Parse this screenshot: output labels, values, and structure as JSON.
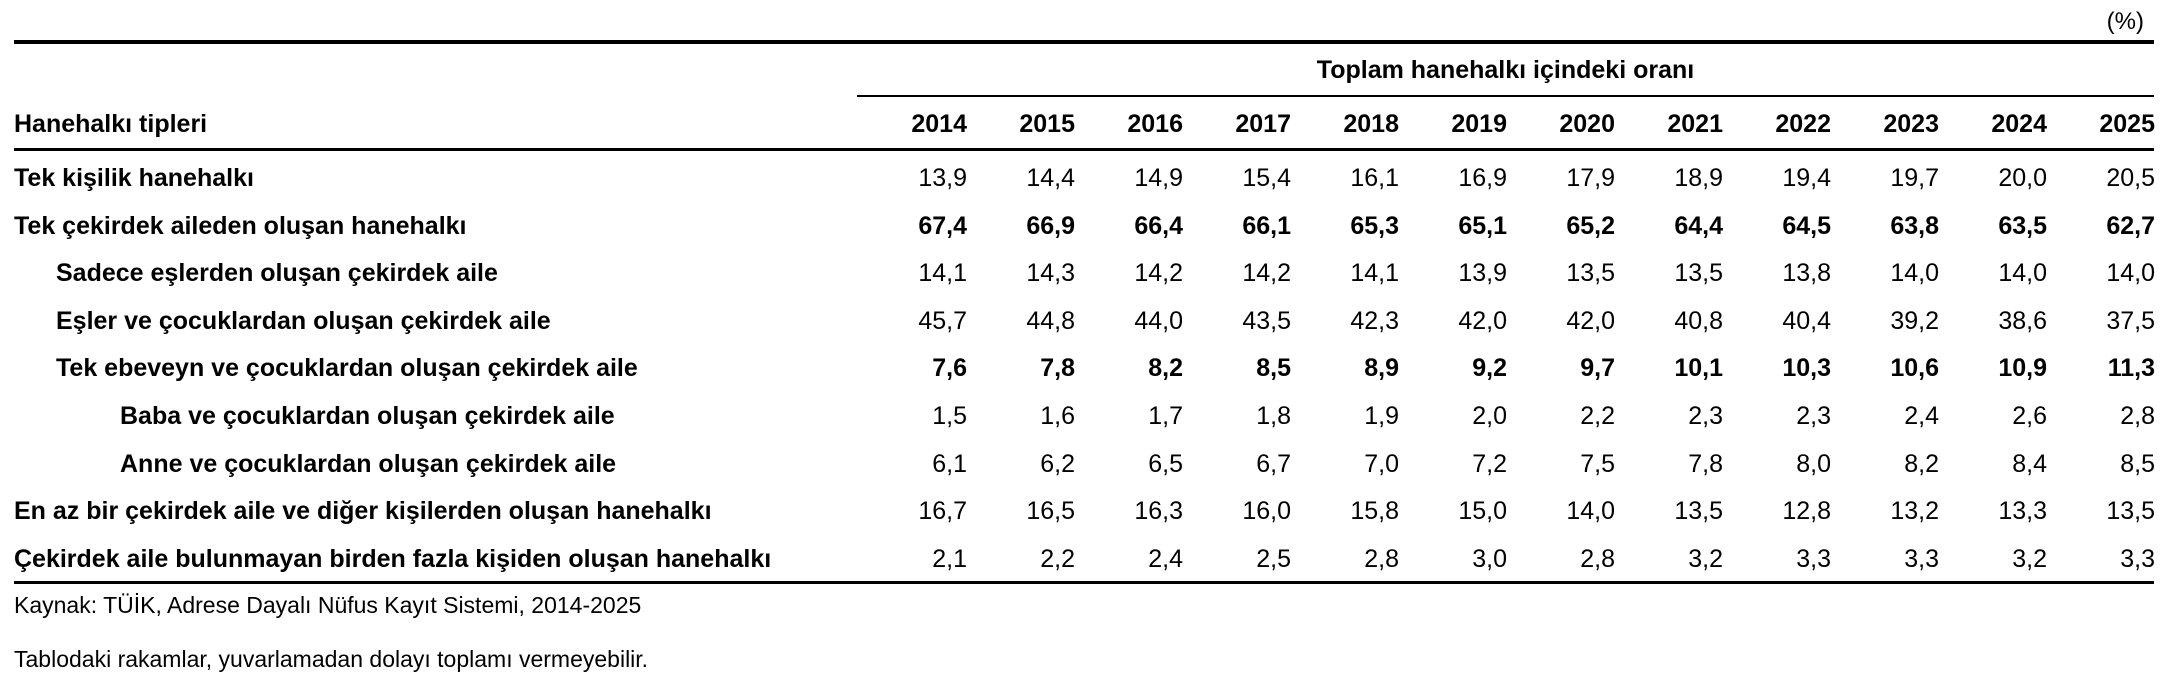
{
  "unit_label": "(%)",
  "header": {
    "span_title": "Toplam hanehalkı içindeki oranı",
    "row_header": "Hanehalkı tipleri",
    "years": [
      "2014",
      "2015",
      "2016",
      "2017",
      "2018",
      "2019",
      "2020",
      "2021",
      "2022",
      "2023",
      "2024",
      "2025"
    ]
  },
  "rows": [
    {
      "label": "Tek kişilik hanehalkı",
      "indent": 0,
      "bold": false,
      "values": [
        "13,9",
        "14,4",
        "14,9",
        "15,4",
        "16,1",
        "16,9",
        "17,9",
        "18,9",
        "19,4",
        "19,7",
        "20,0",
        "20,5"
      ]
    },
    {
      "label": "Tek çekirdek aileden oluşan hanehalkı",
      "indent": 0,
      "bold": true,
      "values": [
        "67,4",
        "66,9",
        "66,4",
        "66,1",
        "65,3",
        "65,1",
        "65,2",
        "64,4",
        "64,5",
        "63,8",
        "63,5",
        "62,7"
      ]
    },
    {
      "label": "Sadece eşlerden oluşan çekirdek aile",
      "indent": 1,
      "bold": false,
      "values": [
        "14,1",
        "14,3",
        "14,2",
        "14,2",
        "14,1",
        "13,9",
        "13,5",
        "13,5",
        "13,8",
        "14,0",
        "14,0",
        "14,0"
      ]
    },
    {
      "label": "Eşler ve çocuklardan oluşan çekirdek aile",
      "indent": 1,
      "bold": false,
      "values": [
        "45,7",
        "44,8",
        "44,0",
        "43,5",
        "42,3",
        "42,0",
        "42,0",
        "40,8",
        "40,4",
        "39,2",
        "38,6",
        "37,5"
      ]
    },
    {
      "label": "Tek ebeveyn ve çocuklardan oluşan çekirdek aile",
      "indent": 1,
      "bold": true,
      "values": [
        "7,6",
        "7,8",
        "8,2",
        "8,5",
        "8,9",
        "9,2",
        "9,7",
        "10,1",
        "10,3",
        "10,6",
        "10,9",
        "11,3"
      ]
    },
    {
      "label": "Baba ve çocuklardan oluşan çekirdek aile",
      "indent": 2,
      "bold": false,
      "values": [
        "1,5",
        "1,6",
        "1,7",
        "1,8",
        "1,9",
        "2,0",
        "2,2",
        "2,3",
        "2,3",
        "2,4",
        "2,6",
        "2,8"
      ]
    },
    {
      "label": "Anne ve çocuklardan oluşan çekirdek aile",
      "indent": 2,
      "bold": false,
      "values": [
        "6,1",
        "6,2",
        "6,5",
        "6,7",
        "7,0",
        "7,2",
        "7,5",
        "7,8",
        "8,0",
        "8,2",
        "8,4",
        "8,5"
      ]
    },
    {
      "label": "En az bir çekirdek aile ve diğer kişilerden oluşan hanehalkı",
      "indent": 0,
      "bold": false,
      "values": [
        "16,7",
        "16,5",
        "16,3",
        "16,0",
        "15,8",
        "15,0",
        "14,0",
        "13,5",
        "12,8",
        "13,2",
        "13,3",
        "13,5"
      ]
    },
    {
      "label": "Çekirdek aile bulunmayan birden fazla kişiden oluşan hanehalkı",
      "indent": 0,
      "bold": false,
      "values": [
        "2,1",
        "2,2",
        "2,4",
        "2,5",
        "2,8",
        "3,0",
        "2,8",
        "3,2",
        "3,3",
        "3,3",
        "3,2",
        "3,3"
      ]
    }
  ],
  "footnotes": {
    "source": "Kaynak: TÜİK, Adrese Dayalı Nüfus Kayıt Sistemi, 2014-2025",
    "rounding": "Tablodaki rakamlar, yuvarlamadan dolayı toplamı vermeyebilir."
  }
}
